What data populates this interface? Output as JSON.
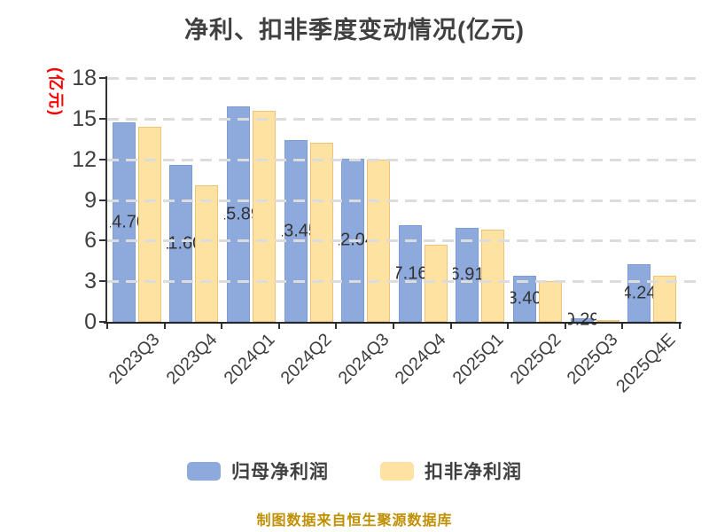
{
  "title": "净利、扣非季度变动情况(亿元)",
  "y_axis_label": "(亿元)",
  "footer": "制图数据来自恒生聚源数据库",
  "colors": {
    "blue_bar": "#8EA9DB",
    "blue_bar_border": "#7C9CD4",
    "orange_bar": "#FDE2A2",
    "orange_bar_border": "#F0C179",
    "title_text": "#404040",
    "axis_text": "#404040",
    "y_axis_label_red": "#FF0000",
    "footer_gold": "#BF8F00",
    "gridline": "#DCDCDC",
    "bar_label_text": "#333333"
  },
  "legend": {
    "items": [
      {
        "label": "归母净利润",
        "color": "#8EA9DB"
      },
      {
        "label": "扣非净利润",
        "color": "#FDE2A2"
      }
    ]
  },
  "chart_data": {
    "type": "bar",
    "title": "净利、扣非季度变动情况(亿元)",
    "ylabel": "(亿元)",
    "categories": [
      "2023Q3",
      "2023Q4",
      "2024Q1",
      "2024Q2",
      "2024Q3",
      "2024Q4",
      "2025Q1",
      "2025Q2",
      "2025Q3",
      "2025Q4E"
    ],
    "series": [
      {
        "name": "归母净利润",
        "color": "#8EA9DB",
        "values": [
          14.7,
          11.6,
          15.89,
          13.45,
          12.04,
          7.16,
          6.91,
          3.4,
          0.29,
          4.24
        ],
        "bar_labels": [
          "14.70",
          "11.60",
          "15.89",
          "13.45",
          "12.04",
          "7.16",
          "6.91",
          "3.40",
          "0.29",
          "4.24"
        ]
      },
      {
        "name": "扣非净利润",
        "color": "#FDE2A2",
        "values": [
          14.4,
          10.1,
          15.6,
          13.2,
          11.95,
          5.7,
          6.8,
          3.0,
          0.15,
          3.4
        ]
      }
    ],
    "y_ticks": [
      0,
      3,
      6,
      9,
      12,
      15,
      18
    ],
    "ylim": [
      0,
      18
    ],
    "grid": "horizontal-dashed",
    "legend_position": "bottom"
  }
}
